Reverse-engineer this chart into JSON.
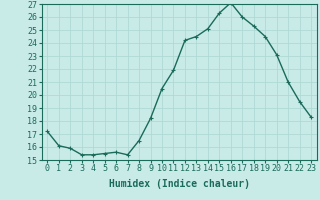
{
  "x": [
    0,
    1,
    2,
    3,
    4,
    5,
    6,
    7,
    8,
    9,
    10,
    11,
    12,
    13,
    14,
    15,
    16,
    17,
    18,
    19,
    20,
    21,
    22,
    23
  ],
  "y": [
    17.2,
    16.1,
    15.9,
    15.4,
    15.4,
    15.5,
    15.6,
    15.4,
    16.5,
    18.2,
    20.5,
    21.9,
    24.2,
    24.5,
    25.1,
    26.3,
    27.1,
    26.0,
    25.3,
    24.5,
    23.1,
    21.0,
    19.5,
    18.3
  ],
  "line_color": "#1a6b5a",
  "marker": "+",
  "bg_color": "#c8ebe8",
  "grid_color": "#b0d8d4",
  "xlabel": "Humidex (Indice chaleur)",
  "ylim": [
    15,
    27
  ],
  "xlim_min": -0.5,
  "xlim_max": 23.5,
  "yticks": [
    15,
    16,
    17,
    18,
    19,
    20,
    21,
    22,
    23,
    24,
    25,
    26,
    27
  ],
  "xticks": [
    0,
    1,
    2,
    3,
    4,
    5,
    6,
    7,
    8,
    9,
    10,
    11,
    12,
    13,
    14,
    15,
    16,
    17,
    18,
    19,
    20,
    21,
    22,
    23
  ],
  "tick_color": "#1a6b5a",
  "font_size": 6,
  "xlabel_fontsize": 7,
  "marker_size": 3,
  "linewidth": 1.0
}
